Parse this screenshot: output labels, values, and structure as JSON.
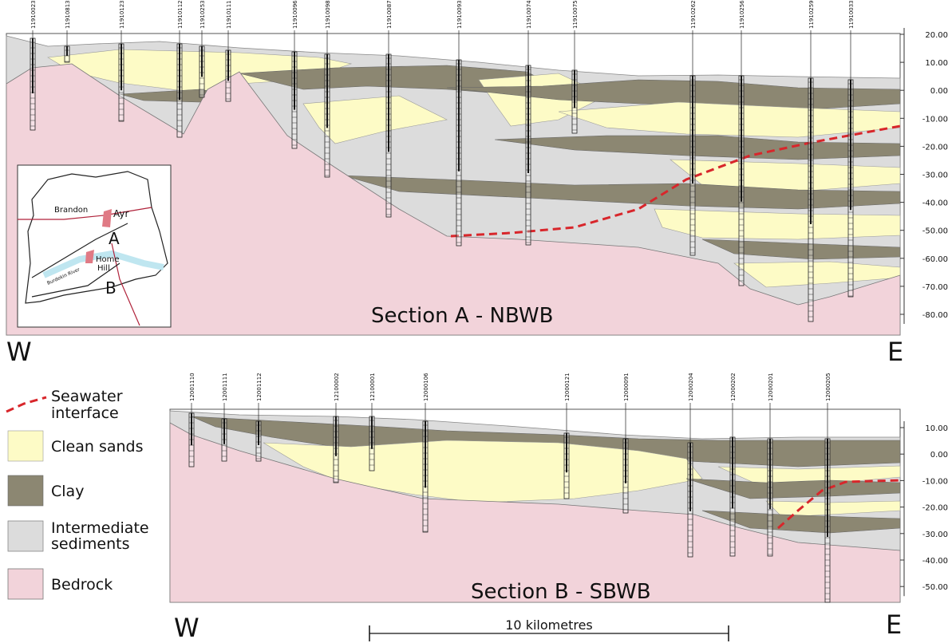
{
  "section_a": {
    "title": "Section A - NBWB",
    "west": "W",
    "east": "E",
    "bores": [
      "11910023",
      "11910813",
      "11910123",
      "11910112",
      "11910253",
      "11910111",
      "11910096",
      "11910098",
      "11910087",
      "11910093",
      "11910074",
      "11910075",
      "11910262",
      "11910256",
      "11910259",
      "11910033"
    ],
    "depth_labels": [
      "20.00",
      "10.00",
      "0.00",
      "-10.00",
      "-20.00",
      "-30.00",
      "-40.00",
      "-50.00",
      "-60.00",
      "-70.00",
      "-80.00"
    ]
  },
  "section_b": {
    "title": "Section B - SBWB",
    "west": "W",
    "east": "E",
    "bores": [
      "12001110",
      "12001111",
      "12001112",
      "12100002",
      "12100001",
      "12000106",
      "12000121",
      "12000091",
      "12000204",
      "12000202",
      "12000201",
      "12000205"
    ],
    "depth_labels": [
      "10.00",
      "0.00",
      "-10.00",
      "-20.00",
      "-30.00",
      "-40.00",
      "-50.00"
    ]
  },
  "legend": {
    "seawater_interface": [
      "Seawater",
      "interface"
    ],
    "clean_sands": "Clean sands",
    "clay": "Clay",
    "intermediate_sediments": [
      "Intermediate",
      "sediments"
    ],
    "bedrock": "Bedrock"
  },
  "map": {
    "brandon": "Brandon",
    "ayr": "Ayr",
    "section_a": "A",
    "home_hill": [
      "Home",
      "Hill"
    ],
    "section_b": "B",
    "river": "Burdekin River"
  },
  "scale_bar": "10 kilometres"
}
